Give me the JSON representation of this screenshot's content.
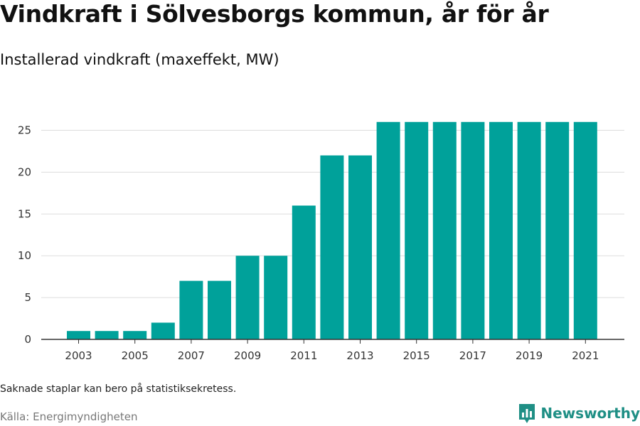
{
  "title": "Vindkraft i Sölvesborgs kommun, år för år",
  "subtitle": "Installerad vindkraft (maxeffekt, MW)",
  "footer": {
    "note": "Saknade staplar kan bero på statistiksekretess.",
    "source": "Källa: Energimyndigheten",
    "brand": "Newsworthy",
    "brand_icon": "bar-chart-logo-icon"
  },
  "colors": {
    "bar": "#00a19a",
    "grid": "#dddddd",
    "axis": "#333333",
    "brand": "#1f8f85"
  },
  "chart_data": {
    "type": "bar",
    "title": "Vindkraft i Sölvesborgs kommun, år för år",
    "subtitle": "Installerad vindkraft (maxeffekt, MW)",
    "categories": [
      "2003",
      "2004",
      "2005",
      "2006",
      "2007",
      "2008",
      "2009",
      "2010",
      "2011",
      "2012",
      "2013",
      "2014",
      "2015",
      "2016",
      "2017",
      "2018",
      "2019",
      "2020",
      "2021"
    ],
    "values": [
      1,
      1,
      1,
      2,
      7,
      7,
      10,
      10,
      16,
      22,
      22,
      26,
      26,
      26,
      26,
      26,
      26,
      26,
      26
    ],
    "x_tick_labels": [
      "2003",
      "2005",
      "2007",
      "2009",
      "2011",
      "2013",
      "2015",
      "2017",
      "2019",
      "2021"
    ],
    "y_ticks": [
      0,
      5,
      10,
      15,
      20,
      25
    ],
    "ylim": [
      0,
      27
    ],
    "xlabel": "",
    "ylabel": "",
    "grid": true,
    "legend": "none"
  }
}
